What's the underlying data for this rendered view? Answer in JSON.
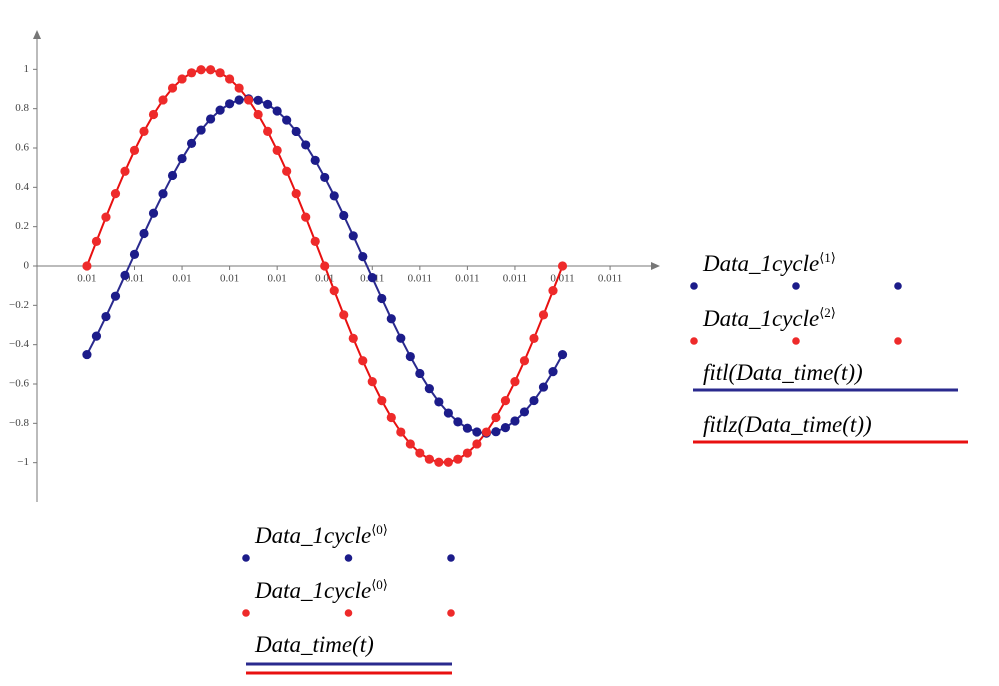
{
  "chart_data": {
    "type": "scatter",
    "x": [
      0.01,
      0.01002,
      0.01004,
      0.01006,
      0.01008,
      0.0101,
      0.01012,
      0.01014,
      0.01016,
      0.01018,
      0.0102,
      0.01022,
      0.01024,
      0.01026,
      0.01028,
      0.0103,
      0.01032,
      0.01034,
      0.01036,
      0.01038,
      0.0104,
      0.01042,
      0.01044,
      0.01046,
      0.01048,
      0.0105,
      0.01052,
      0.01054,
      0.01056,
      0.01058,
      0.0106,
      0.01062,
      0.01064,
      0.01066,
      0.01068,
      0.0107,
      0.01072,
      0.01074,
      0.01076,
      0.01078,
      0.0108,
      0.01082,
      0.01084,
      0.01086,
      0.01088,
      0.0109,
      0.01092,
      0.01094,
      0.01096,
      0.01098,
      0.011
    ],
    "series": [
      {
        "name": "Data_1cycle",
        "name_sup": "⟨1⟩",
        "color": "#1c1c8a",
        "style": "points",
        "values": [
          -0.4504,
          -0.3566,
          -0.257,
          -0.1534,
          -0.0475,
          0.0593,
          0.1651,
          0.2683,
          0.3673,
          0.4604,
          0.5464,
          0.6236,
          0.6911,
          0.7477,
          0.7924,
          0.8247,
          0.8441,
          0.85,
          0.8425,
          0.8218,
          0.7881,
          0.742,
          0.6842,
          0.6156,
          0.5372,
          0.4504,
          0.3566,
          0.257,
          0.1534,
          0.0475,
          -0.0593,
          -0.1651,
          -0.2683,
          -0.3673,
          -0.4604,
          -0.5464,
          -0.6236,
          -0.6911,
          -0.7477,
          -0.7924,
          -0.8247,
          -0.8441,
          -0.85,
          -0.8425,
          -0.8218,
          -0.7881,
          -0.742,
          -0.6842,
          -0.6156,
          -0.5372,
          -0.4504
        ]
      },
      {
        "name": "Data_1cycle",
        "name_sup": "⟨2⟩",
        "color": "#ee2a2a",
        "style": "points",
        "values": [
          0,
          0.1253,
          0.2487,
          0.3681,
          0.4818,
          0.5878,
          0.6845,
          0.7705,
          0.8443,
          0.9048,
          0.9511,
          0.9823,
          0.998,
          0.998,
          0.9823,
          0.9511,
          0.9048,
          0.8443,
          0.7705,
          0.6845,
          0.5878,
          0.4818,
          0.3681,
          0.2487,
          0.1253,
          0,
          -0.1253,
          -0.2487,
          -0.3681,
          -0.4818,
          -0.5878,
          -0.6845,
          -0.7705,
          -0.8443,
          -0.9048,
          -0.9511,
          -0.9823,
          -0.998,
          -0.998,
          -0.9823,
          -0.9511,
          -0.9048,
          -0.8443,
          -0.7705,
          -0.6845,
          -0.5878,
          -0.4818,
          -0.3681,
          -0.2487,
          -0.1253,
          0
        ]
      },
      {
        "name": "fitl(Data_time(t))",
        "color": "#2a2a8e",
        "style": "line",
        "values": [
          -0.4504,
          -0.3566,
          -0.257,
          -0.1534,
          -0.0475,
          0.0593,
          0.1651,
          0.2683,
          0.3673,
          0.4604,
          0.5464,
          0.6236,
          0.6911,
          0.7477,
          0.7924,
          0.8247,
          0.8441,
          0.85,
          0.8425,
          0.8218,
          0.7881,
          0.742,
          0.6842,
          0.6156,
          0.5372,
          0.4504,
          0.3566,
          0.257,
          0.1534,
          0.0475,
          -0.0593,
          -0.1651,
          -0.2683,
          -0.3673,
          -0.4604,
          -0.5464,
          -0.6236,
          -0.6911,
          -0.7477,
          -0.7924,
          -0.8247,
          -0.8441,
          -0.85,
          -0.8425,
          -0.8218,
          -0.7881,
          -0.742,
          -0.6842,
          -0.6156,
          -0.5372,
          -0.4504
        ]
      },
      {
        "name": "fitlz(Data_time(t))",
        "color": "#e81010",
        "style": "line",
        "values": [
          0,
          0.1253,
          0.2487,
          0.3681,
          0.4818,
          0.5878,
          0.6845,
          0.7705,
          0.8443,
          0.9048,
          0.9511,
          0.9823,
          0.998,
          0.998,
          0.9823,
          0.9511,
          0.9048,
          0.8443,
          0.7705,
          0.6845,
          0.5878,
          0.4818,
          0.3681,
          0.2487,
          0.1253,
          0,
          -0.1253,
          -0.2487,
          -0.3681,
          -0.4818,
          -0.5878,
          -0.6845,
          -0.7705,
          -0.8443,
          -0.9048,
          -0.9511,
          -0.9823,
          -0.998,
          -0.998,
          -0.9823,
          -0.9511,
          -0.9048,
          -0.8443,
          -0.7705,
          -0.6845,
          -0.5878,
          -0.4818,
          -0.3681,
          -0.2487,
          -0.1253,
          0
        ]
      }
    ],
    "x_expressions": [
      {
        "name": "Data_1cycle",
        "name_sup": "⟨0⟩",
        "color": "#1c1c8a",
        "style": "points"
      },
      {
        "name": "Data_1cycle",
        "name_sup": "⟨0⟩",
        "color": "#ee2a2a",
        "style": "points"
      },
      {
        "name": "Data_time(t)",
        "colors": [
          "#2a2a8e",
          "#e81010"
        ],
        "style": "line"
      }
    ],
    "xlim": [
      0.009895,
      0.011205
    ],
    "xticks": [
      {
        "value": 0.01,
        "label": "0.01"
      },
      {
        "value": 0.0101,
        "label": "0.01"
      },
      {
        "value": 0.0102,
        "label": "0.01"
      },
      {
        "value": 0.0103,
        "label": "0.01"
      },
      {
        "value": 0.0104,
        "label": "0.01"
      },
      {
        "value": 0.0105,
        "label": "0.01"
      },
      {
        "value": 0.0106,
        "label": "0.011"
      },
      {
        "value": 0.0107,
        "label": "0.011"
      },
      {
        "value": 0.0108,
        "label": "0.011"
      },
      {
        "value": 0.0109,
        "label": "0.011"
      },
      {
        "value": 0.011,
        "label": "0.011"
      },
      {
        "value": 0.0111,
        "label": "0.011"
      }
    ],
    "ylim": [
      -1.2,
      1.2
    ],
    "yticks": [
      1,
      0.8,
      0.6,
      0.4,
      0.2,
      0,
      {
        "value": -0.2,
        "label": "−0.2"
      },
      {
        "value": -0.4,
        "label": "−0.4"
      },
      {
        "value": -0.6,
        "label": "−0.6"
      },
      {
        "value": -0.8,
        "label": "−0.8"
      },
      {
        "value": -1,
        "label": "−1"
      }
    ]
  }
}
